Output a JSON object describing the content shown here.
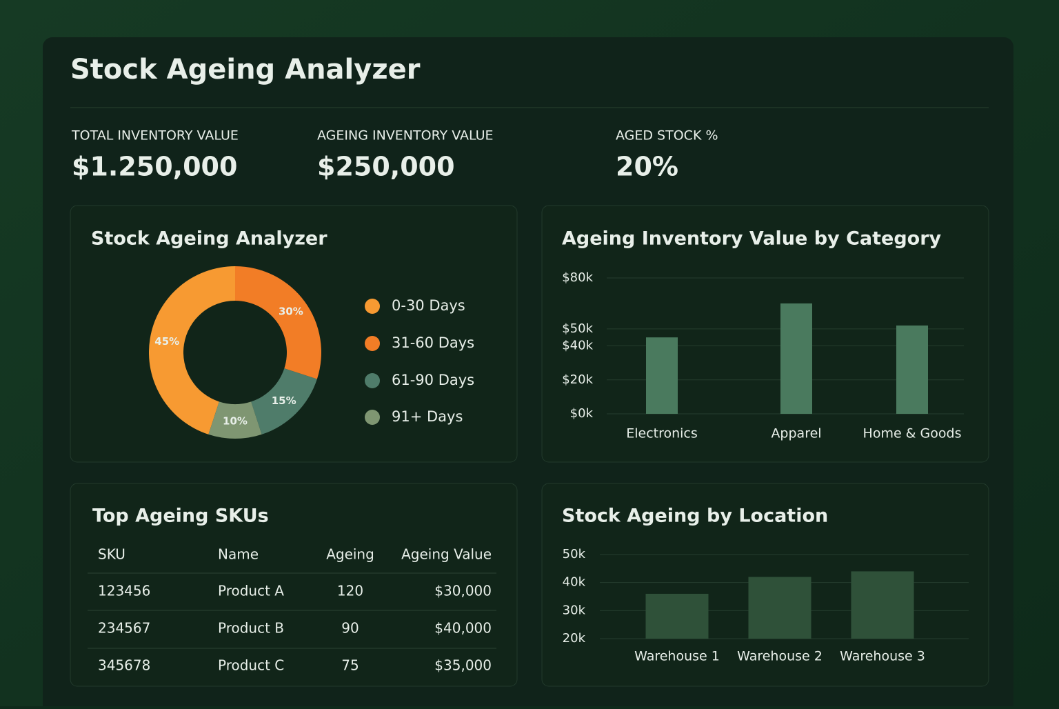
{
  "header": {
    "title": "Stock Ageing Analyzer"
  },
  "kpis": [
    {
      "label": "TOTAL INVENTORY VALUE",
      "value": "$1.250,000"
    },
    {
      "label": "AGEING INVENTORY VALUE",
      "value": "$250,000"
    },
    {
      "label": "AGED STOCK %",
      "value": "20%"
    }
  ],
  "chart_data": [
    {
      "type": "donut",
      "title": "Stock Ageing Analyzer",
      "categories": [
        "0-30 Days",
        "31-60 Days",
        "61-90 Days",
        "91+ Days"
      ],
      "values": [
        45,
        30,
        15,
        10
      ],
      "value_labels": [
        "45%",
        "30%",
        "15%",
        "10%"
      ],
      "colors": [
        "#f79a32",
        "#f27d26",
        "#4f7c6a",
        "#7f9672"
      ],
      "legend": "right"
    },
    {
      "type": "bar",
      "title": "Ageing Inventory Value by Category",
      "categories": [
        "Electronics",
        "Apparel",
        "Home & Goods"
      ],
      "values": [
        45,
        65,
        52
      ],
      "color": "#4a7a5e",
      "ylim": [
        0,
        80
      ],
      "yticks": [
        {
          "value": 0,
          "label": "$0k"
        },
        {
          "value": 20,
          "label": "$20k"
        },
        {
          "value": 40,
          "label": "$40k"
        },
        {
          "value": 50,
          "label": "$50k"
        },
        {
          "value": 80,
          "label": "$80k"
        }
      ],
      "grid": true
    },
    {
      "type": "bar",
      "title": "Stock Ageing by Location",
      "categories": [
        "Warehouse 1",
        "Warehouse 2",
        "Warehouse 3"
      ],
      "values": [
        36,
        42,
        44
      ],
      "color": "#2f5139",
      "ylim": [
        20,
        50
      ],
      "yticks": [
        {
          "value": 20,
          "label": "20k"
        },
        {
          "value": 30,
          "label": "30k"
        },
        {
          "value": 40,
          "label": "40k"
        },
        {
          "value": 50,
          "label": "50k"
        }
      ],
      "grid": true
    }
  ],
  "table": {
    "title": "Top Ageing SKUs",
    "columns": [
      "SKU",
      "Name",
      "Ageing",
      "Ageing Value"
    ],
    "rows": [
      [
        "123456",
        "Product A",
        "120",
        "$30,000"
      ],
      [
        "234567",
        "Product B",
        "90",
        "$40,000"
      ],
      [
        "345678",
        "Product C",
        "75",
        "$35,000"
      ]
    ]
  }
}
